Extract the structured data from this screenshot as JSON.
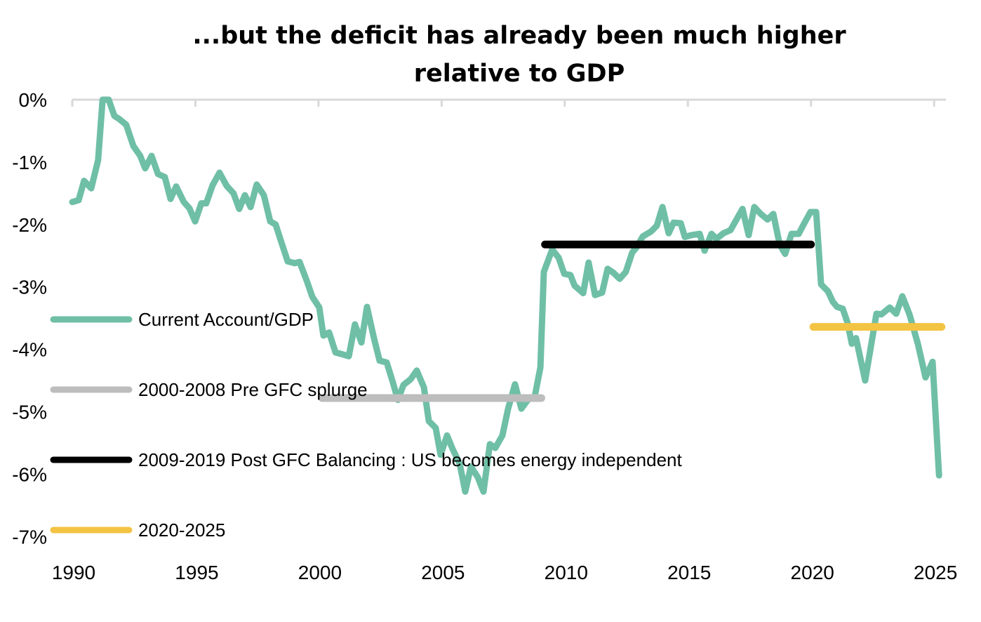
{
  "chart_data": {
    "type": "line",
    "title": "...but the deficit has already been much higher relative to GDP",
    "title_lines": [
      "...but the deficit has already been much higher",
      "relative to GDP"
    ],
    "xlim": [
      1990,
      2025.4
    ],
    "ylim": [
      -7,
      0
    ],
    "x_ticks": [
      1990,
      1995,
      2000,
      2005,
      2010,
      2015,
      2020,
      2025
    ],
    "x_tick_labels": [
      "1990",
      "1995",
      "2000",
      "2005",
      "2010",
      "2015",
      "2020",
      "2025"
    ],
    "y_ticks": [
      0,
      -1,
      -2,
      -3,
      -4,
      -5,
      -6,
      -7
    ],
    "y_tick_labels": [
      "0%",
      "-1%",
      "-2%",
      "-3%",
      "-4%",
      "-5%",
      "-6%",
      "-7%"
    ],
    "grid": false,
    "legend_position": "left",
    "series": [
      {
        "name": "Current Account/GDP",
        "color": "#6fbfa6",
        "x": [
          1990.0,
          1990.26,
          1990.48,
          1990.77,
          1991.05,
          1991.23,
          1991.48,
          1991.71,
          1991.91,
          1992.19,
          1992.48,
          1992.76,
          1992.96,
          1993.22,
          1993.48,
          1993.76,
          1993.99,
          1994.22,
          1994.53,
          1994.76,
          1994.99,
          1995.24,
          1995.44,
          1995.7,
          1995.98,
          1996.27,
          1996.55,
          1996.78,
          1997.01,
          1997.24,
          1997.49,
          1997.78,
          1998.04,
          1998.26,
          1998.52,
          1998.75,
          1999.03,
          1999.23,
          1999.52,
          1999.75,
          2000.03,
          2000.2,
          2000.43,
          2000.69,
          2000.97,
          2001.23,
          2001.48,
          2001.74,
          2001.97,
          2002.25,
          2002.48,
          2002.77,
          2003.02,
          2003.22,
          2003.45,
          2003.74,
          2003.99,
          2004.28,
          2004.48,
          2004.76,
          2004.96,
          2005.22,
          2005.45,
          2005.73,
          2005.96,
          2006.19,
          2006.47,
          2006.7,
          2006.96,
          2007.18,
          2007.47,
          2007.7,
          2007.98,
          2008.24,
          2008.5,
          2008.78,
          2009.01,
          2009.15,
          2009.49,
          2009.75,
          2009.98,
          2010.23,
          2010.4,
          2010.75,
          2010.97,
          2011.23,
          2011.52,
          2011.74,
          2011.97,
          2012.23,
          2012.48,
          2012.74,
          2012.91,
          2013.17,
          2013.51,
          2013.74,
          2013.97,
          2014.22,
          2014.42,
          2014.71,
          2014.88,
          2015.14,
          2015.48,
          2015.68,
          2015.96,
          2016.16,
          2016.45,
          2016.73,
          2017.22,
          2017.47,
          2017.7,
          2017.96,
          2018.24,
          2018.47,
          2018.73,
          2018.95,
          2019.21,
          2019.5,
          2019.7,
          2019.98,
          2020.21,
          2020.41,
          2020.69,
          2020.89,
          2021.06,
          2021.29,
          2021.49,
          2021.66,
          2021.83,
          2022.2,
          2022.66,
          2022.86,
          2023.2,
          2023.46,
          2023.71,
          2024.0,
          2024.34,
          2024.65,
          2024.94,
          2025.2
        ],
        "y": [
          -1.64,
          -1.61,
          -1.3,
          -1.42,
          -0.97,
          0.0,
          0.0,
          -0.26,
          -0.31,
          -0.4,
          -0.74,
          -0.9,
          -1.1,
          -0.9,
          -1.19,
          -1.24,
          -1.59,
          -1.39,
          -1.64,
          -1.74,
          -1.95,
          -1.66,
          -1.66,
          -1.37,
          -1.17,
          -1.38,
          -1.5,
          -1.75,
          -1.53,
          -1.72,
          -1.36,
          -1.53,
          -1.95,
          -2.0,
          -2.32,
          -2.59,
          -2.62,
          -2.6,
          -2.9,
          -3.16,
          -3.33,
          -3.78,
          -3.73,
          -4.05,
          -4.08,
          -4.11,
          -3.6,
          -3.89,
          -3.32,
          -3.82,
          -4.18,
          -4.21,
          -4.53,
          -4.81,
          -4.57,
          -4.48,
          -4.34,
          -4.61,
          -5.15,
          -5.26,
          -5.69,
          -5.38,
          -5.6,
          -5.83,
          -6.28,
          -5.88,
          -6.05,
          -6.28,
          -5.52,
          -5.58,
          -5.38,
          -4.95,
          -4.56,
          -4.95,
          -4.81,
          -4.76,
          -4.29,
          -2.76,
          -2.4,
          -2.53,
          -2.79,
          -2.81,
          -2.98,
          -3.1,
          -2.61,
          -3.13,
          -3.09,
          -2.71,
          -2.77,
          -2.87,
          -2.76,
          -2.45,
          -2.37,
          -2.19,
          -2.11,
          -2.02,
          -1.72,
          -2.14,
          -1.97,
          -1.98,
          -2.2,
          -2.17,
          -2.15,
          -2.42,
          -2.15,
          -2.23,
          -2.14,
          -2.09,
          -1.75,
          -2.17,
          -1.72,
          -1.83,
          -1.92,
          -1.83,
          -2.32,
          -2.47,
          -2.15,
          -2.15,
          -2.0,
          -1.8,
          -1.8,
          -2.96,
          -3.07,
          -3.24,
          -3.32,
          -3.35,
          -3.58,
          -3.91,
          -3.82,
          -4.5,
          -3.43,
          -3.44,
          -3.33,
          -3.43,
          -3.15,
          -3.44,
          -3.91,
          -4.45,
          -4.2,
          -6.02
        ]
      }
    ],
    "reference_lines": [
      {
        "name": "2000-2008 Pre GFC splurge",
        "color": "#bdbdbd",
        "value": -4.78,
        "x_start": 2000.15,
        "x_end": 2009.05
      },
      {
        "name": "2009-2019 Post GFC Balancing : US becomes energy independent",
        "color": "#000000",
        "value": -2.32,
        "x_start": 2009.2,
        "x_end": 2020.0
      },
      {
        "name": "2020-2025",
        "color": "#f3c343",
        "value": -3.64,
        "x_start": 2020.1,
        "x_end": 2025.3
      }
    ]
  }
}
